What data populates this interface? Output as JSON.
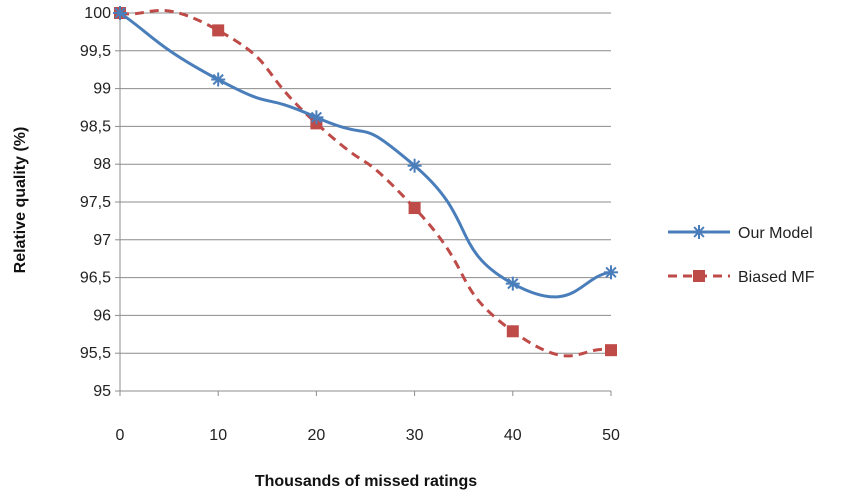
{
  "chart_data": {
    "type": "line",
    "xlabel": "Thousands of missed ratings",
    "ylabel": "Relative quality (%)",
    "x": [
      0,
      10,
      20,
      30,
      40,
      50
    ],
    "xlim": [
      0,
      50
    ],
    "ylim": [
      95,
      100
    ],
    "xticks": [
      "0",
      "10",
      "20",
      "30",
      "40",
      "50"
    ],
    "yticks": [
      "95",
      "95,5",
      "96",
      "96,5",
      "97",
      "97,5",
      "98",
      "98,5",
      "99",
      "99,5",
      "100"
    ],
    "grid": "horizontal",
    "legend_position": "right",
    "series": [
      {
        "name": "Our Model",
        "values": [
          100,
          99.12,
          98.62,
          97.98,
          96.42,
          96.57
        ],
        "color": "#4a7ebb",
        "marker": "star",
        "line": "solid"
      },
      {
        "name": "Biased MF",
        "values": [
          100,
          99.77,
          98.54,
          97.42,
          95.79,
          95.54
        ],
        "color": "#be4b48",
        "marker": "square",
        "line": "dashed"
      }
    ]
  }
}
